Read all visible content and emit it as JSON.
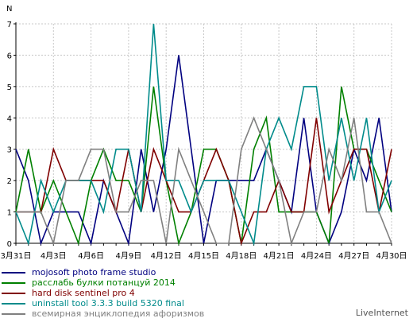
{
  "chart_data": {
    "type": "line",
    "ylabel": "N",
    "ylim": [
      0,
      7
    ],
    "yticks": [
      "0",
      "1",
      "2",
      "3",
      "4",
      "5",
      "6",
      "7"
    ],
    "grid": true,
    "legend_position": "bottom",
    "x": [
      "3月31日",
      "4月1日",
      "4月2日",
      "4月3日",
      "4月4日",
      "4月5日",
      "4月6日",
      "4月7日",
      "4月8日",
      "4月9日",
      "4月10日",
      "4月11日",
      "4月12日",
      "4月13日",
      "4月14日",
      "4月15日",
      "4月16日",
      "4月17日",
      "4月18日",
      "4月19日",
      "4月20日",
      "4月21日",
      "4月22日",
      "4月23日",
      "4月24日",
      "4月25日",
      "4月26日",
      "4月27日",
      "4月28日",
      "4月29日",
      "4月30日"
    ],
    "xticklabels": [
      "3月31日",
      "4月3日",
      "4月6日",
      "4月9日",
      "4月12日",
      "4月15日",
      "4月18日",
      "4月21日",
      "4月24日",
      "4月27日",
      "4月30日"
    ],
    "series": [
      {
        "name": "mojosoft photo frame studio",
        "color": "#000080",
        "values": [
          3,
          2,
          0,
          1,
          1,
          1,
          0,
          2,
          1,
          0,
          3,
          1,
          3,
          6,
          3,
          0,
          2,
          2,
          2,
          2,
          3,
          2,
          1,
          4,
          1,
          0,
          1,
          3,
          2,
          4,
          1
        ]
      },
      {
        "name": "расслабь булки потанцуй 2014",
        "color": "#008000",
        "values": [
          1,
          3,
          1,
          2,
          1,
          0,
          2,
          3,
          2,
          2,
          1,
          5,
          2,
          0,
          1,
          3,
          3,
          2,
          0,
          3,
          4,
          1,
          1,
          1,
          1,
          0,
          5,
          3,
          3,
          2,
          1
        ]
      },
      {
        "name": "hard disk sentinel pro 4",
        "color": "#800000",
        "values": [
          1,
          1,
          1,
          3,
          2,
          2,
          2,
          2,
          1,
          3,
          1,
          3,
          2,
          1,
          1,
          2,
          3,
          2,
          0,
          1,
          1,
          2,
          1,
          1,
          4,
          1,
          2,
          3,
          3,
          1,
          3
        ]
      },
      {
        "name": "uninstall tool 3.3.3 build 5320 final",
        "color": "#008b8b",
        "values": [
          1,
          0,
          2,
          1,
          2,
          2,
          2,
          1,
          3,
          3,
          1,
          7,
          2,
          2,
          1,
          2,
          2,
          2,
          1,
          0,
          3,
          4,
          3,
          5,
          5,
          2,
          4,
          2,
          4,
          1,
          2
        ]
      },
      {
        "name": "всемирная энциклопедия афоризмов",
        "color": "#808080",
        "values": [
          1,
          1,
          1,
          0,
          2,
          2,
          3,
          3,
          1,
          1,
          2,
          2,
          0,
          3,
          2,
          1,
          0,
          0,
          3,
          4,
          3,
          2,
          0,
          1,
          1,
          3,
          2,
          4,
          1,
          1,
          0
        ]
      }
    ]
  },
  "brand": "LiveInternet"
}
